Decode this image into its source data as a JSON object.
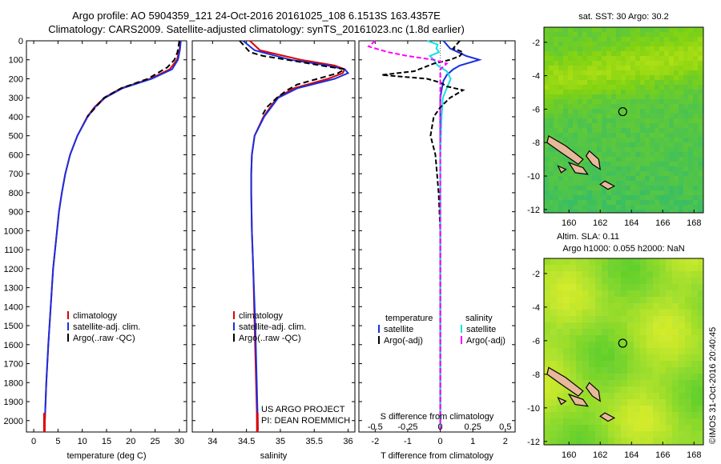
{
  "header": {
    "line1": "Argo profile: AO 5904359_121 24-Oct-2016 20161025_108 6.1513S 163.4357E",
    "line2": "Climatology: CARS2009. Satellite-adjusted climatology: synTS_20161023.nc (1.8d earlier)"
  },
  "colors": {
    "climatology": "#e00000",
    "satellite": "#1a2fe0",
    "argo": "#000000",
    "sal_satellite": "#18dede",
    "sal_argo": "#ff00ff",
    "land": "#e8b89a"
  },
  "depth_ticks": [
    0,
    100,
    200,
    300,
    400,
    500,
    600,
    700,
    800,
    900,
    1000,
    1100,
    1200,
    1300,
    1400,
    1500,
    1600,
    1700,
    1800,
    1900,
    2000
  ],
  "chart_data": [
    {
      "type": "line",
      "title": "",
      "xlabel": "temperature (deg C)",
      "ylabel": "",
      "xlim": [
        -1.5,
        31.5
      ],
      "ylim": [
        2060,
        0
      ],
      "x_ticks": [
        0,
        5,
        10,
        15,
        20,
        25,
        30
      ],
      "legend": [
        "climatology",
        "satellite-adj. clim.",
        "Argo(..raw -QC)"
      ],
      "series": [
        {
          "name": "climatology",
          "depth": [
            0,
            50,
            100,
            150,
            200,
            250,
            300,
            350,
            400,
            500,
            600,
            700,
            800,
            900,
            1000,
            1200,
            1400,
            1600,
            1800,
            2000,
            2050
          ],
          "values": [
            30.2,
            30.0,
            29.5,
            28.0,
            24.0,
            18.0,
            14.5,
            12.5,
            11.0,
            9.0,
            7.5,
            6.5,
            5.8,
            5.2,
            4.8,
            4.0,
            3.5,
            3.0,
            2.6,
            2.3,
            2.2
          ]
        },
        {
          "name": "satellite-adj. clim.",
          "depth": [
            0,
            50,
            100,
            150,
            200,
            250,
            300,
            350,
            400,
            500,
            600,
            700,
            800,
            900,
            1000,
            1200,
            1400,
            1600,
            1800,
            2000,
            2050
          ],
          "values": [
            30.3,
            30.1,
            29.7,
            28.5,
            24.3,
            18.3,
            14.7,
            12.6,
            11.1,
            9.0,
            7.5,
            6.5,
            5.8,
            5.2,
            4.8,
            4.0,
            3.5,
            3.0,
            2.6,
            2.3,
            2.2
          ]
        },
        {
          "name": "Argo(..raw -QC)",
          "depth": [
            0,
            30,
            60,
            100,
            140,
            170,
            200,
            250,
            300,
            400
          ],
          "values": [
            30.0,
            29.8,
            29.6,
            29.0,
            27.5,
            25.5,
            23.5,
            18.0,
            14.5,
            11.0
          ]
        }
      ]
    },
    {
      "type": "line",
      "title": "",
      "xlabel": "salinity",
      "ylabel": "",
      "xlim": [
        33.7,
        36.1
      ],
      "ylim": [
        2060,
        0
      ],
      "x_ticks": [
        34,
        34.5,
        35,
        35.5,
        36
      ],
      "legend": [
        "climatology",
        "satellite-adj. clim.",
        "Argo(..raw -QC)"
      ],
      "annotation": [
        "US ARGO PROJECT",
        "PI: DEAN ROEMMICH"
      ],
      "series": [
        {
          "name": "climatology",
          "depth": [
            0,
            50,
            100,
            130,
            150,
            170,
            200,
            250,
            300,
            400,
            500,
            600,
            700,
            800,
            1000,
            1200,
            1500,
            2050
          ],
          "values": [
            34.55,
            34.7,
            35.3,
            35.8,
            35.95,
            35.92,
            35.7,
            35.2,
            34.95,
            34.75,
            34.62,
            34.58,
            34.57,
            34.57,
            34.58,
            34.6,
            34.62,
            34.66
          ]
        },
        {
          "name": "satellite-adj. clim.",
          "depth": [
            0,
            50,
            100,
            130,
            150,
            170,
            200,
            250,
            300,
            400,
            500,
            600,
            700,
            800,
            1000,
            1200,
            1500,
            2050
          ],
          "values": [
            34.45,
            34.62,
            35.15,
            35.7,
            35.95,
            36.0,
            35.8,
            35.25,
            34.97,
            34.76,
            34.62,
            34.58,
            34.57,
            34.57,
            34.58,
            34.6,
            34.63,
            34.67
          ]
        },
        {
          "name": "Argo(..raw -QC)",
          "depth": [
            0,
            20,
            40,
            60,
            80,
            100,
            130,
            150,
            170,
            200,
            230,
            260,
            300,
            350,
            400
          ],
          "values": [
            34.4,
            34.45,
            34.5,
            34.55,
            34.75,
            35.1,
            35.6,
            35.95,
            35.85,
            35.55,
            35.25,
            35.1,
            34.95,
            34.8,
            34.72
          ]
        }
      ]
    },
    {
      "type": "line",
      "title": "",
      "xlabel": "T difference from climatology",
      "x2label": "S difference from climatology",
      "ylabel": "",
      "xlim": [
        -2.5,
        2.3
      ],
      "x2lim": [
        -0.625,
        0.575
      ],
      "ylim": [
        2060,
        0
      ],
      "x_ticks": [
        -2,
        -1,
        0,
        1,
        2
      ],
      "x2_ticks": [
        -0.5,
        -0.25,
        0,
        0.25,
        0.5
      ],
      "x2_tick_labels": [
        "-0.5",
        "-0.25",
        "0",
        "0.25",
        "0.5"
      ],
      "legend_temperature": [
        "temperature",
        "satellite",
        "Argo(-adj)"
      ],
      "legend_salinity": [
        "salinity",
        "satellite",
        "Argo(-adj)"
      ],
      "series": [
        {
          "name": "temperature satellite",
          "axis": "T",
          "depth": [
            0,
            40,
            80,
            100,
            130,
            150,
            180,
            210,
            250,
            300,
            400,
            500,
            700,
            1000,
            1500,
            2050
          ],
          "values": [
            0.1,
            0.3,
            0.8,
            1.2,
            0.6,
            0.4,
            0.2,
            0.1,
            0.05,
            0.0,
            0.0,
            0.0,
            0.0,
            0.0,
            0.0,
            0.0
          ]
        },
        {
          "name": "temperature Argo(-adj)",
          "axis": "T",
          "depth": [
            0,
            20,
            40,
            60,
            80,
            100,
            120,
            140,
            160,
            180,
            200,
            220,
            240,
            260,
            280,
            300,
            350,
            400,
            500,
            600,
            800,
            1000,
            2000
          ],
          "values": [
            0.6,
            0.5,
            0.4,
            0.7,
            0.6,
            0.3,
            -0.2,
            -0.5,
            -0.8,
            -1.8,
            -0.4,
            0.0,
            0.2,
            0.7,
            0.5,
            0.3,
            0.0,
            -0.2,
            -0.3,
            -0.15,
            -0.05,
            0.0,
            0.0
          ]
        },
        {
          "name": "salinity satellite",
          "axis": "S",
          "depth": [
            0,
            20,
            40,
            60,
            80,
            100,
            130,
            160,
            200,
            250,
            300,
            400,
            600,
            1000,
            1500,
            2050
          ],
          "values": [
            -0.1,
            -0.02,
            -0.03,
            -0.01,
            -0.08,
            -0.05,
            -0.02,
            0.05,
            0.08,
            0.05,
            0.02,
            0.01,
            0.0,
            0.0,
            0.0,
            0.0
          ]
        },
        {
          "name": "salinity Argo(-adj)",
          "axis": "S",
          "depth": [
            0,
            30,
            60,
            80,
            100,
            120,
            150,
            200,
            250,
            300,
            400,
            600,
            1000,
            2050
          ],
          "values": [
            -0.5,
            -0.55,
            -0.4,
            -0.25,
            -0.05,
            0.05,
            0.0,
            0.0,
            0.0,
            0.0,
            0.0,
            0.0,
            0.0,
            0.0
          ]
        }
      ]
    },
    {
      "type": "heatmap",
      "title": "sat. SST: 30 Argo: 30.2",
      "xlim": [
        158.4,
        168.6
      ],
      "ylim": [
        -12.2,
        -1.1
      ],
      "x_ticks": [
        160,
        162,
        164,
        166,
        168
      ],
      "y_ticks": [
        -2,
        -4,
        -6,
        -8,
        -10,
        -12
      ],
      "marker": {
        "lon": 163.44,
        "lat": -6.15
      }
    },
    {
      "type": "heatmap",
      "title": "Altim. SLA: 0.11",
      "subtitle": "Argo h1000: 0.055 h2000: NaN",
      "xlim": [
        158.4,
        168.6
      ],
      "ylim": [
        -12.2,
        -1.1
      ],
      "x_ticks": [
        160,
        162,
        164,
        166,
        168
      ],
      "y_ticks": [
        -2,
        -4,
        -6,
        -8,
        -10,
        -12
      ],
      "marker": {
        "lon": 163.44,
        "lat": -6.15
      }
    }
  ],
  "side_label": "©IMOS 31-Oct-2016 20:40:45"
}
